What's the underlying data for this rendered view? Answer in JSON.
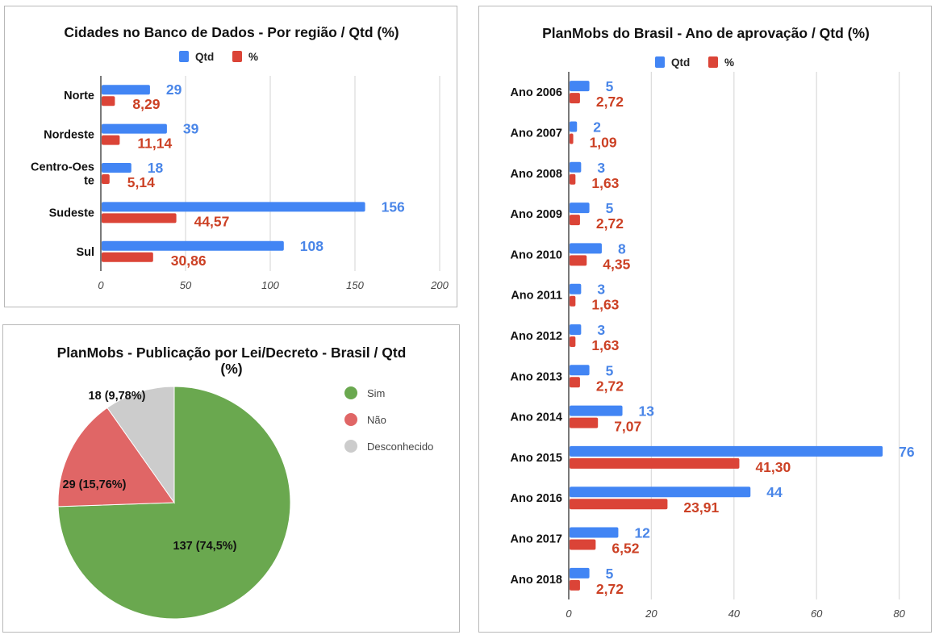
{
  "colors": {
    "qtd": "#4285f4",
    "pct": "#db4437",
    "qtd_label": "#4a86e8",
    "pct_label": "#cc4125",
    "grid": "#dddddd",
    "axis": "#333333"
  },
  "chart_data": [
    {
      "id": "region",
      "type": "bar",
      "orientation": "horizontal",
      "title": "Cidades no Banco de Dados - Por região / Qtd (%)",
      "legend": {
        "position": "top",
        "entries": [
          "Qtd",
          "%"
        ]
      },
      "categories": [
        "Norte",
        "Nordeste",
        "Centro-Oeste",
        "Sudeste",
        "Sul"
      ],
      "category_lines": [
        [
          "Norte"
        ],
        [
          "Nordeste"
        ],
        [
          "Centro-Oes",
          "te"
        ],
        [
          "Sudeste"
        ],
        [
          "Sul"
        ]
      ],
      "series": [
        {
          "name": "Qtd",
          "values": [
            29,
            39,
            18,
            156,
            108
          ],
          "labels": [
            "29",
            "39",
            "18",
            "156",
            "108"
          ]
        },
        {
          "name": "%",
          "values": [
            8.29,
            11.14,
            5.14,
            44.57,
            30.86
          ],
          "labels": [
            "8,29",
            "11,14",
            "5,14",
            "44,57",
            "30,86"
          ]
        }
      ],
      "xlim": [
        0,
        200
      ],
      "xticks": [
        0,
        50,
        100,
        150,
        200
      ],
      "grid": true,
      "xlabel": "",
      "ylabel": ""
    },
    {
      "id": "pie",
      "type": "pie",
      "title": "PlanMobs  - Publicação por Lei/Decreto - Brasil / Qtd (%)",
      "title_lines": [
        "PlanMobs  - Publicação por Lei/Decreto - Brasil / Qtd",
        "(%)"
      ],
      "legend": {
        "position": "right",
        "entries": [
          "Sim",
          "Não",
          "Desconhecido"
        ]
      },
      "slices": [
        {
          "name": "Sim",
          "value": 137,
          "percent": 74.5,
          "label": "137 (74,5%)",
          "color": "#6aa84f"
        },
        {
          "name": "Não",
          "value": 29,
          "percent": 15.76,
          "label": "29 (15,76%)",
          "color": "#e06666"
        },
        {
          "name": "Desconhecido",
          "value": 18,
          "percent": 9.78,
          "label": "18 (9,78%)",
          "color": "#cccccc"
        }
      ]
    },
    {
      "id": "year",
      "type": "bar",
      "orientation": "horizontal",
      "title": "PlanMobs do Brasil - Ano de aprovação / Qtd (%)",
      "legend": {
        "position": "top",
        "entries": [
          "Qtd",
          "%"
        ]
      },
      "categories": [
        "Ano 2006",
        "Ano 2007",
        "Ano 2008",
        "Ano 2009",
        "Ano 2010",
        "Ano 2011",
        "Ano 2012",
        "Ano 2013",
        "Ano 2014",
        "Ano 2015",
        "Ano 2016",
        "Ano 2017",
        "Ano 2018"
      ],
      "series": [
        {
          "name": "Qtd",
          "values": [
            5,
            2,
            3,
            5,
            8,
            3,
            3,
            5,
            13,
            76,
            44,
            12,
            5
          ],
          "labels": [
            "5",
            "2",
            "3",
            "5",
            "8",
            "3",
            "3",
            "5",
            "13",
            "76",
            "44",
            "12",
            "5"
          ]
        },
        {
          "name": "%",
          "values": [
            2.72,
            1.09,
            1.63,
            2.72,
            4.35,
            1.63,
            1.63,
            2.72,
            7.07,
            41.3,
            23.91,
            6.52,
            2.72
          ],
          "labels": [
            "2,72",
            "1,09",
            "1,63",
            "2,72",
            "4,35",
            "1,63",
            "1,63",
            "2,72",
            "7,07",
            "41,30",
            "23,91",
            "6,52",
            "2,72"
          ]
        }
      ],
      "xlim": [
        0,
        84
      ],
      "xticks": [
        0,
        20,
        40,
        60,
        80
      ],
      "grid": true,
      "xlabel": "",
      "ylabel": ""
    }
  ]
}
